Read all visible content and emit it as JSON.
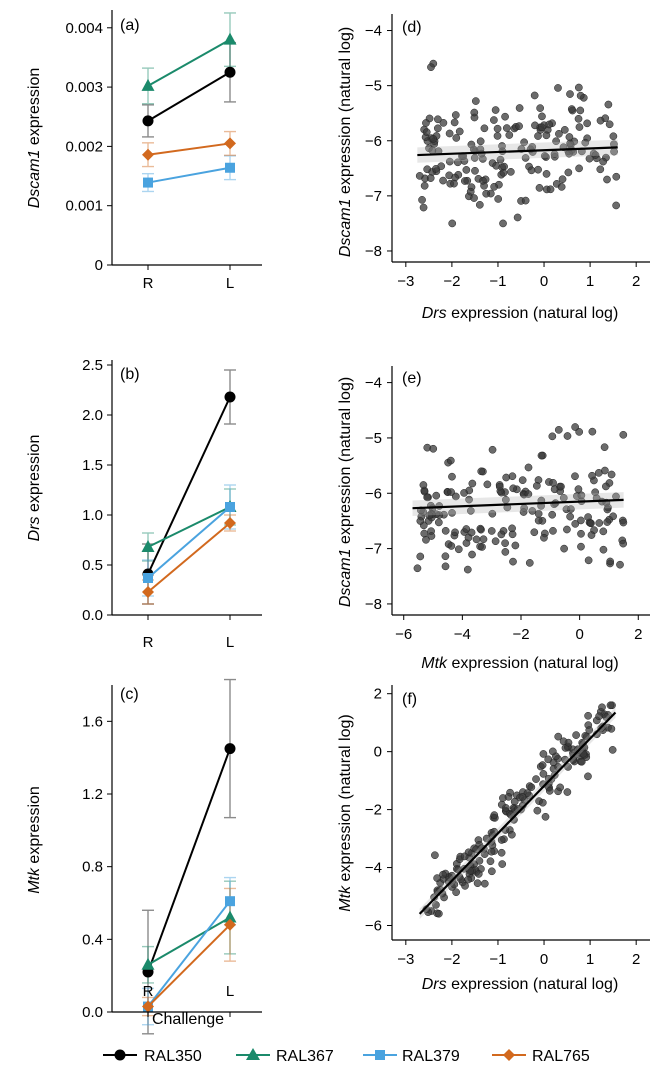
{
  "legend": {
    "items": [
      {
        "label": "RAL350",
        "color": "#000000",
        "marker": "circle"
      },
      {
        "label": "RAL367",
        "color": "#1b8a6b",
        "marker": "triangle"
      },
      {
        "label": "RAL379",
        "color": "#4aa3df",
        "marker": "square"
      },
      {
        "label": "RAL765",
        "color": "#d2691e",
        "marker": "diamond"
      }
    ]
  },
  "chart_data": [
    {
      "id": "a",
      "panel_label": "(a)",
      "type": "line",
      "ylabel_gene": "Dscam1",
      "ylabel_rest": " expression",
      "xlabel": "",
      "categories": [
        "R",
        "L"
      ],
      "yticks": [
        "0",
        "0.001",
        "0.002",
        "0.003",
        "0.004"
      ],
      "ylim": [
        0,
        0.0043
      ],
      "series": [
        {
          "name": "RAL350",
          "values": [
            0.00243,
            0.00325
          ],
          "err": [
            0.00027,
            0.0005
          ]
        },
        {
          "name": "RAL367",
          "values": [
            0.00302,
            0.0038
          ],
          "err": [
            0.0003,
            0.00045
          ]
        },
        {
          "name": "RAL379",
          "values": [
            0.00139,
            0.00164
          ],
          "err": [
            0.00015,
            0.0002
          ]
        },
        {
          "name": "RAL765",
          "values": [
            0.00186,
            0.00205
          ],
          "err": [
            0.0002,
            0.0002
          ]
        }
      ]
    },
    {
      "id": "b",
      "panel_label": "(b)",
      "type": "line",
      "ylabel_gene": "Drs",
      "ylabel_rest": " expression",
      "xlabel": "",
      "categories": [
        "R",
        "L"
      ],
      "yticks": [
        "0.0",
        "0.5",
        "1.0",
        "1.5",
        "2.0",
        "2.5"
      ],
      "ylim": [
        0,
        2.55
      ],
      "series": [
        {
          "name": "RAL350",
          "values": [
            0.41,
            2.18
          ],
          "err": [
            0.3,
            0.27
          ]
        },
        {
          "name": "RAL367",
          "values": [
            0.68,
            1.08
          ],
          "err": [
            0.14,
            0.18
          ]
        },
        {
          "name": "RAL379",
          "values": [
            0.37,
            1.08
          ],
          "err": [
            0.18,
            0.22
          ]
        },
        {
          "name": "RAL765",
          "values": [
            0.23,
            0.92
          ],
          "err": [
            0.12,
            0.08
          ]
        }
      ]
    },
    {
      "id": "c",
      "panel_label": "(c)",
      "type": "line",
      "ylabel_gene": "Mtk",
      "ylabel_rest": " expression",
      "xlabel": "Challenge",
      "categories": [
        "R",
        "L"
      ],
      "yticks": [
        "0.0",
        "0.4",
        "0.8",
        "1.2",
        "1.6"
      ],
      "ylim": [
        0,
        1.8
      ],
      "series": [
        {
          "name": "RAL350",
          "values": [
            0.22,
            1.45
          ],
          "err": [
            0.34,
            0.38
          ]
        },
        {
          "name": "RAL367",
          "values": [
            0.26,
            0.52
          ],
          "err": [
            0.1,
            0.2
          ]
        },
        {
          "name": "RAL379",
          "values": [
            0.03,
            0.61
          ],
          "err": [
            0.1,
            0.13
          ]
        },
        {
          "name": "RAL765",
          "values": [
            0.03,
            0.48
          ],
          "err": [
            0.05,
            0.2
          ]
        }
      ]
    },
    {
      "id": "d",
      "panel_label": "(d)",
      "type": "scatter",
      "ylabel_gene": "Dscam1",
      "ylabel_rest": " expression (natural log)",
      "xlabel_gene": "Drs",
      "xlabel_rest": " expression (natural log)",
      "xlim": [
        -3.3,
        2.3
      ],
      "ylim": [
        -8.2,
        -3.7
      ],
      "xticks": [
        -3,
        -2,
        -1,
        0,
        1,
        2
      ],
      "yticks": [
        -8,
        -7,
        -6,
        -5,
        -4
      ],
      "fit": {
        "x": [
          -2.75,
          1.6
        ],
        "y": [
          -6.26,
          -6.12
        ]
      },
      "cloud": {
        "seed": 11,
        "n": 180,
        "xmin": -2.7,
        "xmax": 1.6,
        "slope": 0.03,
        "intercept": -6.18,
        "sd": 0.52,
        "ymin": -7.5,
        "ymax": -4.6
      }
    },
    {
      "id": "e",
      "panel_label": "(e)",
      "type": "scatter",
      "ylabel_gene": "Dscam1",
      "ylabel_rest": " expression (natural log)",
      "xlabel_gene": "Mtk",
      "xlabel_rest": " expression (natural log)",
      "xlim": [
        -6.4,
        2.4
      ],
      "ylim": [
        -8.2,
        -3.7
      ],
      "xticks": [
        -6,
        -4,
        -2,
        0,
        2
      ],
      "yticks": [
        -8,
        -7,
        -6,
        -5,
        -4
      ],
      "fit": {
        "x": [
          -5.7,
          1.5
        ],
        "y": [
          -6.27,
          -6.12
        ]
      },
      "cloud": {
        "seed": 23,
        "n": 180,
        "xmin": -5.6,
        "xmax": 1.5,
        "slope": 0.02,
        "intercept": -6.15,
        "sd": 0.52,
        "ymin": -7.5,
        "ymax": -4.6
      }
    },
    {
      "id": "f",
      "panel_label": "(f)",
      "type": "scatter",
      "ylabel_gene": "Mtk",
      "ylabel_rest": " expression (natural log)",
      "xlabel_gene": "Drs",
      "xlabel_rest": " expression (natural log)",
      "xlim": [
        -3.3,
        2.3
      ],
      "ylim": [
        -6.5,
        2.3
      ],
      "xticks": [
        -3,
        -2,
        -1,
        0,
        1,
        2
      ],
      "yticks": [
        -6,
        -4,
        -2,
        0,
        2
      ],
      "fit": {
        "x": [
          -2.7,
          1.55
        ],
        "y": [
          -5.6,
          1.35
        ]
      },
      "cloud": {
        "seed": 37,
        "n": 190,
        "xmin": -2.6,
        "xmax": 1.5,
        "slope": 1.64,
        "intercept": -1.2,
        "sd": 0.5,
        "ymin": -5.8,
        "ymax": 1.6
      }
    }
  ]
}
